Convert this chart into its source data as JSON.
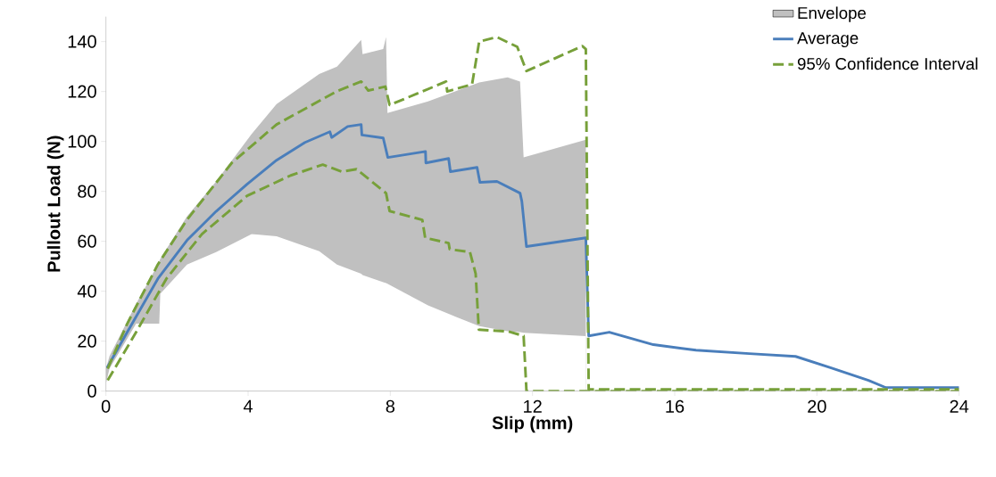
{
  "chart_data": {
    "type": "line",
    "xlabel": "Slip (mm)",
    "ylabel": "Pullout Load (N)",
    "xlim": [
      0,
      24
    ],
    "ylim": [
      0,
      150
    ],
    "xticks": [
      0,
      4,
      8,
      12,
      16,
      20,
      24
    ],
    "yticks": [
      0,
      20,
      40,
      60,
      80,
      100,
      120,
      140
    ],
    "grid": false,
    "legend": "top right",
    "marker": "none",
    "series": [
      {
        "name": "Envelope",
        "type": "area",
        "color": "#c0c0c0",
        "x": [
          0,
          0.1,
          0.85,
          1.46,
          1.5,
          1.53,
          2.28,
          3.1,
          4.1,
          4.8,
          5.6,
          6.0,
          6.5,
          7.18,
          7.22,
          7.8,
          7.88,
          7.92,
          9.06,
          10.5,
          11.3,
          11.65,
          11.75,
          13.5
        ],
        "values": [
          9,
          14,
          35,
          50.7,
          52,
          53,
          70,
          84,
          103,
          115,
          123,
          127,
          130,
          140.7,
          135,
          137,
          141.8,
          111.4,
          116,
          123.6,
          125.7,
          124,
          93.6,
          100.7
        ]
      },
      {
        "type": "area",
        "color": "#ffffff",
        "x": [
          0,
          0.1,
          0.85,
          1.46,
          1.5,
          1.53,
          2.28,
          3.1,
          4.1,
          4.8,
          5.6,
          6.0,
          6.5,
          7.18,
          7.22,
          7.8,
          7.88,
          7.92,
          9.06,
          10.5,
          11.3,
          11.65,
          11.75,
          13.5
        ],
        "values": [
          3,
          9,
          27,
          27,
          27,
          39,
          50.7,
          55.7,
          62.9,
          62,
          58,
          56,
          50.7,
          47,
          46.5,
          43.6,
          43.3,
          43,
          34.3,
          26,
          24,
          23.6,
          23.4,
          22
        ]
      },
      {
        "name": "Average",
        "color": "#4a7ebb",
        "line_style": "solid",
        "x": [
          0.03,
          0.6,
          1.46,
          2.28,
          3.1,
          3.97,
          4.8,
          5.6,
          6.3,
          6.35,
          6.8,
          7.18,
          7.2,
          7.8,
          7.93,
          8.99,
          9.0,
          9.64,
          9.69,
          10.44,
          10.52,
          11.0,
          11.65,
          11.7,
          11.83,
          13.5,
          13.58,
          14.16,
          15.4,
          16.6,
          18.1,
          19.4,
          20.4,
          21.45,
          21.94,
          24
        ],
        "values": [
          9.3,
          23.6,
          45,
          60.4,
          72,
          82.9,
          92.5,
          99.6,
          103.9,
          101.6,
          106,
          106.8,
          102.6,
          101.4,
          93.6,
          96,
          91.4,
          93.2,
          87.9,
          89.6,
          83.6,
          84,
          79.3,
          76,
          57.9,
          61.4,
          22.1,
          23.6,
          18.6,
          16.4,
          15,
          13.9,
          9.3,
          4.3,
          1.4,
          1.4
        ]
      },
      {
        "name": "95% Confidence Interval",
        "color": "#77a03a",
        "line_style": "dashed",
        "x": [
          0.05,
          0.6,
          1.46,
          2.28,
          3.54,
          4.8,
          6.48,
          7.18,
          7.38,
          7.86,
          7.98,
          9.57,
          9.6,
          10.3,
          10.5,
          11.0,
          11.57,
          11.83,
          13.4,
          13.5,
          13.58,
          24
        ],
        "values": [
          9,
          27,
          50.7,
          68.6,
          91.4,
          106.8,
          120,
          124,
          120.4,
          122,
          114.6,
          124,
          120,
          122.9,
          140,
          141.8,
          137.9,
          128.2,
          138.2,
          137,
          0.7,
          0.7
        ]
      },
      {
        "color": "#77a03a",
        "line_style": "dashed",
        "x": [
          0.05,
          0.85,
          1.7,
          2.7,
          3.97,
          5.2,
          6.1,
          6.63,
          7.05,
          7.88,
          7.98,
          8.9,
          8.98,
          9.64,
          9.67,
          10.24,
          10.4,
          10.49,
          11.32,
          11.75,
          11.83,
          24
        ],
        "values": [
          4.3,
          23.6,
          45,
          62.9,
          78.2,
          86.4,
          90.7,
          87.9,
          88.9,
          79.3,
          72.1,
          68.6,
          61.4,
          59.3,
          56.8,
          55.7,
          47.1,
          24.6,
          23.9,
          22.1,
          0,
          0
        ]
      }
    ]
  }
}
